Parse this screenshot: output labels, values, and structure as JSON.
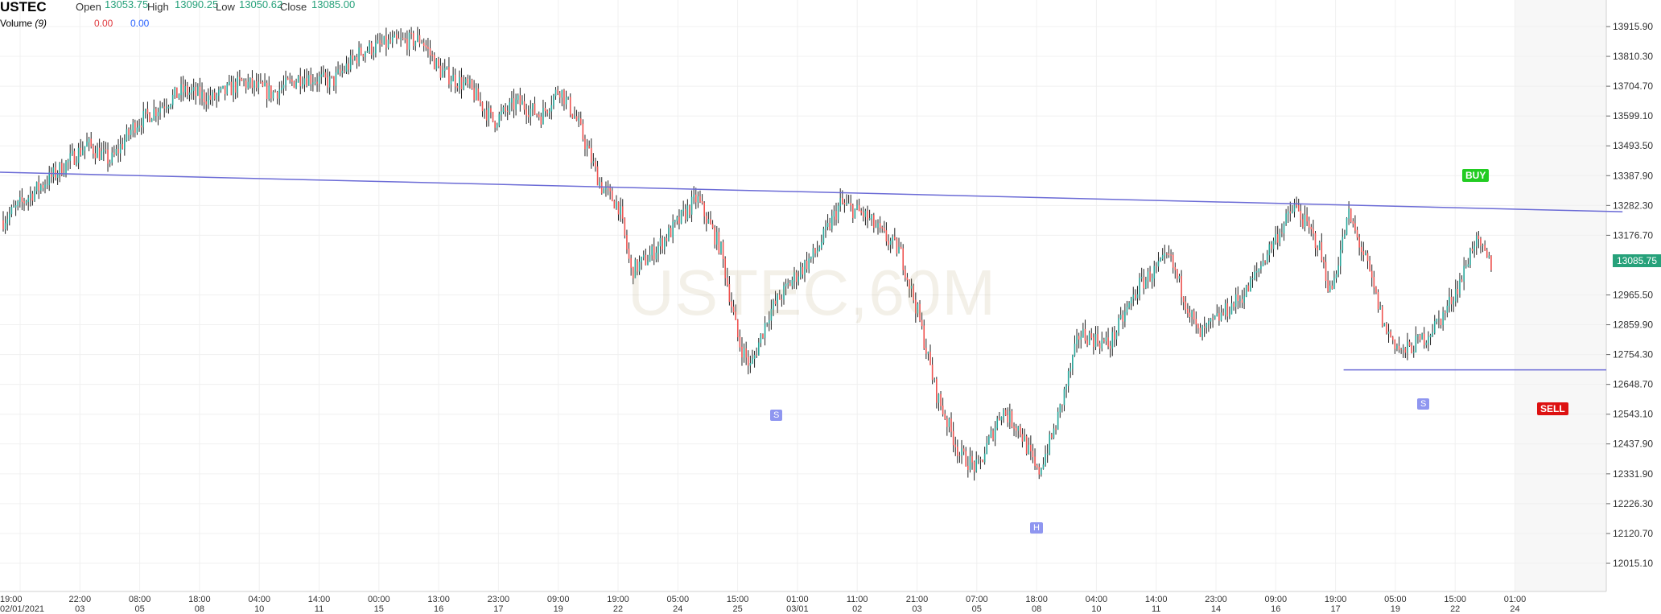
{
  "header": {
    "symbol": "USTEC",
    "open_label": "Open",
    "open": "13053.75",
    "high_label": "High",
    "high": "13090.25",
    "low_label": "Low",
    "low": "13050.62",
    "close_label": "Close",
    "close": "13085.00",
    "volume_label": "Volume",
    "volume_param": "(9)",
    "volume_val1": "0.00",
    "volume_val2": "0.00"
  },
  "watermark": "USTEC,60M",
  "current_price": "13085.75",
  "signals": {
    "buy": "BUY",
    "sell": "SELL"
  },
  "markers": [
    {
      "label": "S",
      "x": "25",
      "price": 12540
    },
    {
      "label": "H",
      "x": "05",
      "price": 12140
    },
    {
      "label": "S",
      "x": "19",
      "price": 12578
    }
  ],
  "colors": {
    "up": "#26a69a",
    "down": "#ef5350",
    "line": "#6b6bd6",
    "grid": "#f0f0f0",
    "buy": "#22cc22",
    "sell": "#dd1111"
  },
  "chart_data": {
    "type": "candlestick",
    "y_ticks": [
      "13915.90",
      "13810.30",
      "13704.70",
      "13599.10",
      "13493.50",
      "13387.90",
      "13282.30",
      "13176.70",
      "12965.50",
      "12859.90",
      "12754.30",
      "12648.70",
      "12543.10",
      "12437.90",
      "12331.90",
      "12226.30",
      "12120.70",
      "12015.10"
    ],
    "x_ticks": [
      {
        "time": "19:00",
        "date": "02/01/2021"
      },
      {
        "time": "22:00",
        "date": "03"
      },
      {
        "time": "08:00",
        "date": "05"
      },
      {
        "time": "18:00",
        "date": "08"
      },
      {
        "time": "04:00",
        "date": "10"
      },
      {
        "time": "14:00",
        "date": "11"
      },
      {
        "time": "00:00",
        "date": "15"
      },
      {
        "time": "13:00",
        "date": "16"
      },
      {
        "time": "23:00",
        "date": "17"
      },
      {
        "time": "09:00",
        "date": "19"
      },
      {
        "time": "19:00",
        "date": "22"
      },
      {
        "time": "05:00",
        "date": "24"
      },
      {
        "time": "15:00",
        "date": "25"
      },
      {
        "time": "01:00",
        "date": "03/01"
      },
      {
        "time": "11:00",
        "date": "02"
      },
      {
        "time": "21:00",
        "date": "03"
      },
      {
        "time": "07:00",
        "date": "05"
      },
      {
        "time": "18:00",
        "date": "08"
      },
      {
        "time": "04:00",
        "date": "10"
      },
      {
        "time": "14:00",
        "date": "11"
      },
      {
        "time": "23:00",
        "date": "14"
      },
      {
        "time": "09:00",
        "date": "16"
      },
      {
        "time": "19:00",
        "date": "17"
      },
      {
        "time": "05:00",
        "date": "19"
      },
      {
        "time": "15:00",
        "date": "22"
      },
      {
        "time": "01:00",
        "date": "24"
      }
    ],
    "path": [
      {
        "x": 0,
        "price": 13230
      },
      {
        "x": 0.5,
        "price": 13330
      },
      {
        "x": 1,
        "price": 13420
      },
      {
        "x": 1.4,
        "price": 13500
      },
      {
        "x": 1.8,
        "price": 13440
      },
      {
        "x": 2.2,
        "price": 13570
      },
      {
        "x": 2.6,
        "price": 13630
      },
      {
        "x": 3,
        "price": 13690
      },
      {
        "x": 3.5,
        "price": 13660
      },
      {
        "x": 4,
        "price": 13720
      },
      {
        "x": 4.5,
        "price": 13680
      },
      {
        "x": 5,
        "price": 13740
      },
      {
        "x": 5.5,
        "price": 13720
      },
      {
        "x": 6,
        "price": 13830
      },
      {
        "x": 6.5,
        "price": 13860
      },
      {
        "x": 7,
        "price": 13870
      },
      {
        "x": 7.3,
        "price": 13760
      },
      {
        "x": 7.8,
        "price": 13700
      },
      {
        "x": 8.2,
        "price": 13580
      },
      {
        "x": 8.6,
        "price": 13650
      },
      {
        "x": 9,
        "price": 13600
      },
      {
        "x": 9.3,
        "price": 13700
      },
      {
        "x": 9.6,
        "price": 13580
      },
      {
        "x": 10,
        "price": 13350
      },
      {
        "x": 10.3,
        "price": 13280
      },
      {
        "x": 10.5,
        "price": 13050
      },
      {
        "x": 10.8,
        "price": 13100
      },
      {
        "x": 11.2,
        "price": 13200
      },
      {
        "x": 11.6,
        "price": 13310
      },
      {
        "x": 12,
        "price": 13130
      },
      {
        "x": 12.3,
        "price": 12800
      },
      {
        "x": 12.5,
        "price": 12710
      },
      {
        "x": 12.8,
        "price": 12900
      },
      {
        "x": 13.2,
        "price": 13020
      },
      {
        "x": 13.6,
        "price": 13120
      },
      {
        "x": 14,
        "price": 13290
      },
      {
        "x": 14.4,
        "price": 13250
      },
      {
        "x": 14.7,
        "price": 13180
      },
      {
        "x": 15,
        "price": 13120
      },
      {
        "x": 15.3,
        "price": 12900
      },
      {
        "x": 15.6,
        "price": 12620
      },
      {
        "x": 16,
        "price": 12400
      },
      {
        "x": 16.3,
        "price": 12350
      },
      {
        "x": 16.7,
        "price": 12560
      },
      {
        "x": 17,
        "price": 12490
      },
      {
        "x": 17.3,
        "price": 12330
      },
      {
        "x": 17.6,
        "price": 12500
      },
      {
        "x": 18,
        "price": 12830
      },
      {
        "x": 18.5,
        "price": 12790
      },
      {
        "x": 19,
        "price": 13000
      },
      {
        "x": 19.5,
        "price": 13100
      },
      {
        "x": 20,
        "price": 12820
      },
      {
        "x": 20.4,
        "price": 12900
      },
      {
        "x": 20.8,
        "price": 12980
      },
      {
        "x": 21.2,
        "price": 13140
      },
      {
        "x": 21.6,
        "price": 13280
      },
      {
        "x": 22,
        "price": 13140
      },
      {
        "x": 22.2,
        "price": 12970
      },
      {
        "x": 22.5,
        "price": 13250
      },
      {
        "x": 22.8,
        "price": 13080
      },
      {
        "x": 23.1,
        "price": 12850
      },
      {
        "x": 23.4,
        "price": 12760
      },
      {
        "x": 23.8,
        "price": 12820
      },
      {
        "x": 24.1,
        "price": 12900
      },
      {
        "x": 24.4,
        "price": 13030
      },
      {
        "x": 24.6,
        "price": 13160
      },
      {
        "x": 24.9,
        "price": 13070
      }
    ],
    "trend_line": [
      {
        "x": 0,
        "price": 13400
      },
      {
        "x": 26.8,
        "price": 13260
      }
    ],
    "support_line": {
      "x_start": 22.0,
      "x_end": 27.6,
      "price": 12700
    },
    "current_price_value": 13085.75,
    "buy_price": 13400,
    "sell_price": 12573
  }
}
